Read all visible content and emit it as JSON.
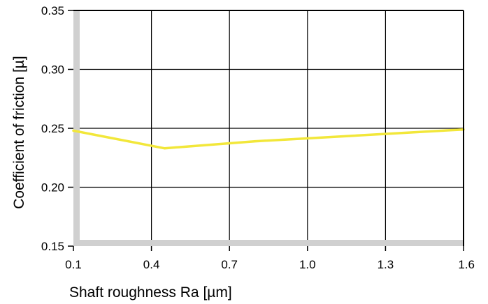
{
  "chart_data": {
    "type": "line",
    "title": "",
    "xlabel": "Shaft roughness Ra [µm]",
    "ylabel": "Coefficient of friction [µ]",
    "xlim": [
      0.1,
      1.6
    ],
    "ylim": [
      0.15,
      0.35
    ],
    "x_ticks": [
      0.1,
      0.4,
      0.7,
      1.0,
      1.3,
      1.6
    ],
    "x_tick_labels": [
      "0.1",
      "0.4",
      "0.7",
      "1.0",
      "1.3",
      "1.6"
    ],
    "y_ticks": [
      0.15,
      0.2,
      0.25,
      0.3,
      0.35
    ],
    "y_tick_labels": [
      "0.15",
      "0.20",
      "0.25",
      "0.30",
      "0.35"
    ],
    "grid": true,
    "series": [
      {
        "color": "#f2e73a",
        "x": [
          0.1,
          0.45,
          0.8,
          1.6
        ],
        "y": [
          0.248,
          0.233,
          0.239,
          0.249
        ]
      }
    ],
    "axis_band_color": "#d0d0d0",
    "frame_color": "#000000"
  }
}
